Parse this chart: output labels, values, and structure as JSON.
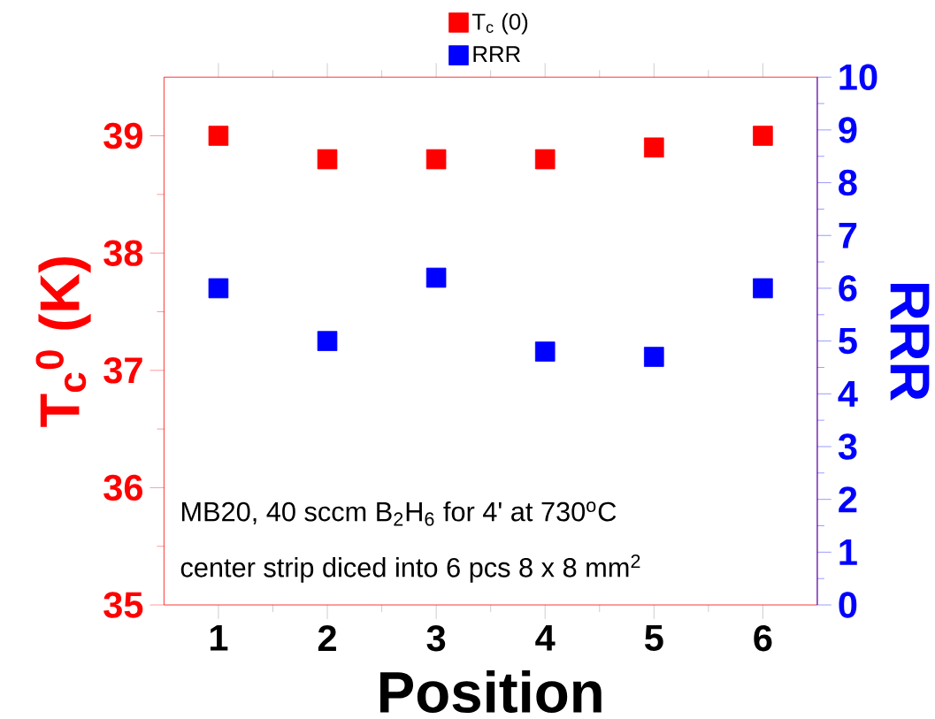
{
  "chart_data": {
    "type": "scatter",
    "xlabel": "Position",
    "ylabel": "T$_{c}$$^{0}$ (K)",
    "y2label": "RRR",
    "x": [
      1,
      2,
      3,
      4,
      5,
      6
    ],
    "series": [
      {
        "name": "T$_{c}$ (0)",
        "color": "#ff0000",
        "values": [
          39.0,
          38.8,
          38.8,
          38.8,
          38.9,
          39.0
        ]
      },
      {
        "name": "RRR",
        "color": "#0000ff",
        "axis": "y2",
        "values": [
          6.0,
          5.0,
          6.2,
          4.8,
          4.7,
          6.0
        ]
      }
    ],
    "xlim": [
      0.5,
      6.5
    ],
    "xticks": [
      1,
      2,
      3,
      4,
      5,
      6
    ],
    "ylim": [
      35,
      39.5
    ],
    "yticks": [
      35,
      36,
      37,
      38,
      39
    ],
    "y2lim": [
      0,
      10
    ],
    "y2ticks": [
      0,
      1,
      2,
      3,
      4,
      5,
      6,
      7,
      8,
      9,
      10
    ],
    "marker": "square",
    "legend": "top",
    "annotations": [
      "MB20, 40 sccm B$_{2}$H$_{6}$ for 4' at 730$^{o}$C",
      "center strip diced into 6 pcs 8 x 8 mm$^{2}$"
    ]
  }
}
